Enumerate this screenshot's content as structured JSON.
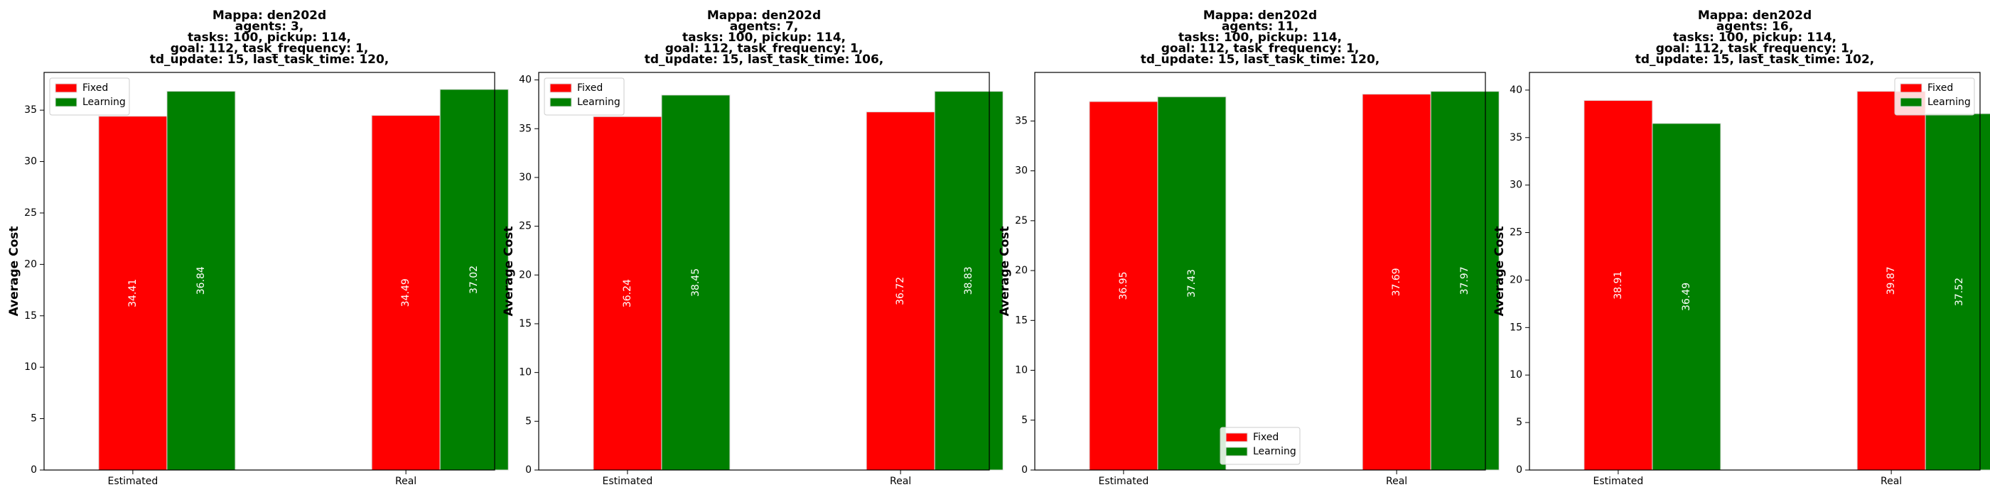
{
  "chart_data": [
    {
      "type": "bar",
      "title_lines": [
        "Mappa: den202d",
        "agents: 3,",
        "tasks: 100, pickup: 114,",
        "goal: 112, task_frequency: 1,",
        "td_update: 15, last_task_time: 120,"
      ],
      "xlabel": "",
      "ylabel": "Average Cost",
      "categories": [
        "Estimated",
        "Real"
      ],
      "series": [
        {
          "name": "Fixed",
          "values": [
            34.41,
            34.49
          ],
          "labels": [
            "34.41",
            "34.49"
          ]
        },
        {
          "name": "Learning",
          "values": [
            36.84,
            37.02
          ],
          "labels": [
            "36.84",
            "37.02"
          ]
        }
      ],
      "ylim": [
        0,
        38.67
      ],
      "yticks": [
        0,
        5,
        10,
        15,
        20,
        25,
        30,
        35
      ],
      "legend_loc": "upper left",
      "grid": false
    },
    {
      "type": "bar",
      "title_lines": [
        "Mappa: den202d",
        "agents: 7,",
        "tasks: 100, pickup: 114,",
        "goal: 112, task_frequency: 1,",
        "td_update: 15, last_task_time: 106,"
      ],
      "xlabel": "",
      "ylabel": "Average Cost",
      "categories": [
        "Estimated",
        "Real"
      ],
      "series": [
        {
          "name": "Fixed",
          "values": [
            36.24,
            36.72
          ],
          "labels": [
            "36.24",
            "36.72"
          ]
        },
        {
          "name": "Learning",
          "values": [
            38.45,
            38.83
          ],
          "labels": [
            "38.45",
            "38.83"
          ]
        }
      ],
      "ylim": [
        0,
        40.77
      ],
      "yticks": [
        0,
        5,
        10,
        15,
        20,
        25,
        30,
        35,
        40
      ],
      "legend_loc": "upper left",
      "grid": false
    },
    {
      "type": "bar",
      "title_lines": [
        "Mappa: den202d",
        "agents: 11,",
        "tasks: 100, pickup: 114,",
        "goal: 112, task_frequency: 1,",
        "td_update: 15, last_task_time: 120,"
      ],
      "xlabel": "",
      "ylabel": "Average Cost",
      "categories": [
        "Estimated",
        "Real"
      ],
      "series": [
        {
          "name": "Fixed",
          "values": [
            36.95,
            37.69
          ],
          "labels": [
            "36.95",
            "37.69"
          ]
        },
        {
          "name": "Learning",
          "values": [
            37.43,
            37.97
          ],
          "labels": [
            "37.43",
            "37.97"
          ]
        }
      ],
      "ylim": [
        0,
        39.87
      ],
      "yticks": [
        0,
        5,
        10,
        15,
        20,
        25,
        30,
        35
      ],
      "legend_loc": "lower center",
      "grid": false
    },
    {
      "type": "bar",
      "title_lines": [
        "Mappa: den202d",
        "agents: 16,",
        "tasks: 100, pickup: 114,",
        "goal: 112, task_frequency: 1,",
        "td_update: 15, last_task_time: 102,"
      ],
      "xlabel": "",
      "ylabel": "Average Cost",
      "categories": [
        "Estimated",
        "Real"
      ],
      "series": [
        {
          "name": "Fixed",
          "values": [
            38.91,
            39.87
          ],
          "labels": [
            "38.91",
            "39.87"
          ]
        },
        {
          "name": "Learning",
          "values": [
            36.49,
            37.52
          ],
          "labels": [
            "36.49",
            "37.52"
          ]
        }
      ],
      "ylim": [
        0,
        41.86
      ],
      "yticks": [
        0,
        5,
        10,
        15,
        20,
        25,
        30,
        35,
        40
      ],
      "legend_loc": "upper right",
      "grid": false
    }
  ],
  "colors": {
    "Fixed": "#ff0000",
    "Learning": "#008000",
    "bar_edge": "#dddddd",
    "axis": "#000000",
    "value_label": "#ffffff"
  }
}
